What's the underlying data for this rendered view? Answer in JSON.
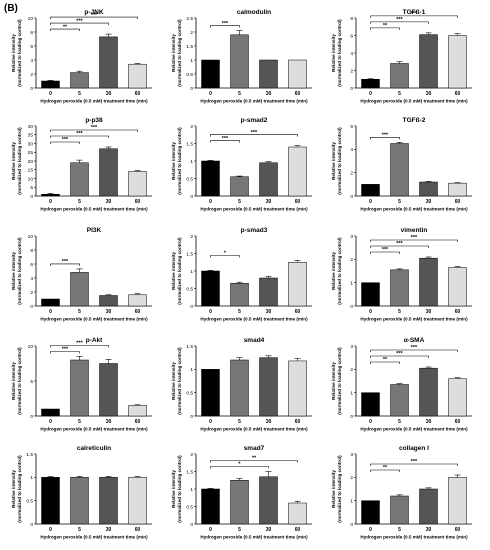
{
  "figure_label": "(B)",
  "shared": {
    "xlabel": "Hydrogen peroxide (0.5 mM) treatment time (min)",
    "ylabel_line1": "Relative intensity",
    "ylabel_line2": "(normalized to loading control)",
    "bar_colors": [
      "#000000",
      "#777777",
      "#555555",
      "#dddddd"
    ]
  },
  "chart_data": [
    {
      "type": "bar",
      "title": "p-JNK",
      "categories": [
        "0",
        "5",
        "30",
        "60"
      ],
      "values": [
        1.0,
        2.2,
        7.3,
        3.4
      ],
      "errors": [
        0.1,
        0.2,
        0.4,
        0.1
      ],
      "ylim": [
        0,
        10
      ],
      "yticks": [
        0,
        2,
        4,
        6,
        8,
        10
      ],
      "sig": [
        {
          "from": 0,
          "to": 1,
          "label": "**"
        },
        {
          "from": 0,
          "to": 2,
          "label": "***"
        },
        {
          "from": 0,
          "to": 3,
          "label": "***"
        }
      ]
    },
    {
      "type": "bar",
      "title": "calmodulin",
      "categories": [
        "0",
        "5",
        "30",
        "60"
      ],
      "values": [
        1.0,
        1.9,
        1.0,
        1.0
      ],
      "errors": [
        0.0,
        0.15,
        0.0,
        0.0
      ],
      "ylim": [
        0,
        2.5
      ],
      "yticks": [
        0,
        0.5,
        1.0,
        1.5,
        2.0,
        2.5
      ],
      "sig": [
        {
          "from": 0,
          "to": 1,
          "label": "***"
        }
      ]
    },
    {
      "type": "bar",
      "title": "TGFß-1",
      "categories": [
        "0",
        "5",
        "30",
        "60"
      ],
      "values": [
        1.0,
        2.8,
        6.1,
        6.0
      ],
      "errors": [
        0.05,
        0.2,
        0.2,
        0.2
      ],
      "ylim": [
        0,
        8
      ],
      "yticks": [
        0,
        2,
        4,
        6,
        8
      ],
      "sig": [
        {
          "from": 0,
          "to": 1,
          "label": "**"
        },
        {
          "from": 0,
          "to": 2,
          "label": "***"
        },
        {
          "from": 0,
          "to": 3,
          "label": "***"
        }
      ]
    },
    {
      "type": "bar",
      "title": "p-p38",
      "categories": [
        "0",
        "5",
        "30",
        "60"
      ],
      "values": [
        1.0,
        19,
        27,
        14
      ],
      "errors": [
        0.5,
        1.5,
        1.0,
        0.5
      ],
      "ylim": [
        0,
        40
      ],
      "yticks": [
        0,
        5,
        10,
        15,
        20,
        25,
        30,
        35,
        40
      ],
      "sig": [
        {
          "from": 0,
          "to": 1,
          "label": "***"
        },
        {
          "from": 0,
          "to": 2,
          "label": "***"
        },
        {
          "from": 0,
          "to": 3,
          "label": "***"
        }
      ]
    },
    {
      "type": "bar",
      "title": "p-smad2",
      "categories": [
        "0",
        "5",
        "30",
        "60"
      ],
      "values": [
        1.0,
        0.55,
        0.95,
        1.4
      ],
      "errors": [
        0.02,
        0.02,
        0.03,
        0.04
      ],
      "ylim": [
        0,
        2.0
      ],
      "yticks": [
        0,
        0.5,
        1.0,
        1.5,
        2.0
      ],
      "sig": [
        {
          "from": 0,
          "to": 1,
          "label": "***"
        },
        {
          "from": 0,
          "to": 3,
          "label": "***"
        }
      ]
    },
    {
      "type": "bar",
      "title": "TGFß-2",
      "categories": [
        "0",
        "5",
        "30",
        "60"
      ],
      "values": [
        1.0,
        4.5,
        1.2,
        1.1
      ],
      "errors": [
        0.0,
        0.1,
        0.05,
        0.05
      ],
      "ylim": [
        0,
        6
      ],
      "yticks": [
        0,
        2,
        4,
        6
      ],
      "sig": [
        {
          "from": 0,
          "to": 1,
          "label": "***"
        }
      ]
    },
    {
      "type": "bar",
      "title": "PI3K",
      "categories": [
        "0",
        "5",
        "30",
        "60"
      ],
      "values": [
        1.0,
        4.8,
        1.5,
        1.6
      ],
      "errors": [
        0.0,
        0.5,
        0.1,
        0.15
      ],
      "ylim": [
        0,
        10
      ],
      "yticks": [
        0,
        2,
        4,
        6,
        8,
        10
      ],
      "sig": [
        {
          "from": 0,
          "to": 1,
          "label": "***"
        }
      ]
    },
    {
      "type": "bar",
      "title": "p-smad3",
      "categories": [
        "0",
        "5",
        "30",
        "60"
      ],
      "values": [
        1.0,
        0.65,
        0.8,
        1.25
      ],
      "errors": [
        0.02,
        0.03,
        0.05,
        0.05
      ],
      "ylim": [
        0,
        2.0
      ],
      "yticks": [
        0,
        0.5,
        1.0,
        1.5,
        2.0
      ],
      "sig": [
        {
          "from": 0,
          "to": 1,
          "label": "*"
        }
      ]
    },
    {
      "type": "bar",
      "title": "vimentin",
      "categories": [
        "0",
        "5",
        "30",
        "60"
      ],
      "values": [
        1.0,
        1.55,
        2.05,
        1.65
      ],
      "errors": [
        0.0,
        0.04,
        0.05,
        0.04
      ],
      "ylim": [
        0,
        3
      ],
      "yticks": [
        0,
        1,
        2,
        3
      ],
      "sig": [
        {
          "from": 0,
          "to": 1,
          "label": "***"
        },
        {
          "from": 0,
          "to": 2,
          "label": "***"
        },
        {
          "from": 0,
          "to": 3,
          "label": "***"
        }
      ]
    },
    {
      "type": "bar",
      "title": "p-Akt",
      "categories": [
        "0",
        "5",
        "30",
        "60"
      ],
      "values": [
        1.0,
        8.0,
        7.5,
        1.5
      ],
      "errors": [
        0.0,
        0.5,
        0.6,
        0.1
      ],
      "ylim": [
        0,
        10
      ],
      "yticks": [
        0,
        5,
        10
      ],
      "sig": [
        {
          "from": 0,
          "to": 1,
          "label": "***"
        },
        {
          "from": 0,
          "to": 2,
          "label": "***"
        }
      ]
    },
    {
      "type": "bar",
      "title": "smad4",
      "categories": [
        "0",
        "5",
        "30",
        "60"
      ],
      "values": [
        1.0,
        1.2,
        1.25,
        1.18
      ],
      "errors": [
        0.0,
        0.05,
        0.04,
        0.05
      ],
      "ylim": [
        0,
        1.5
      ],
      "yticks": [
        0,
        0.5,
        1.0,
        1.5
      ],
      "sig": []
    },
    {
      "type": "bar",
      "title": "α-SMA",
      "categories": [
        "0",
        "5",
        "30",
        "60"
      ],
      "values": [
        1.0,
        1.35,
        2.05,
        1.6
      ],
      "errors": [
        0.0,
        0.04,
        0.05,
        0.04
      ],
      "ylim": [
        0,
        3
      ],
      "yticks": [
        0,
        1,
        2,
        3
      ],
      "sig": [
        {
          "from": 0,
          "to": 1,
          "label": "**"
        },
        {
          "from": 0,
          "to": 2,
          "label": "***"
        },
        {
          "from": 0,
          "to": 3,
          "label": "***"
        }
      ]
    },
    {
      "type": "bar",
      "title": "calreticulin",
      "categories": [
        "0",
        "5",
        "30",
        "60"
      ],
      "values": [
        1.0,
        1.0,
        1.0,
        1.0
      ],
      "errors": [
        0.02,
        0.02,
        0.02,
        0.02
      ],
      "ylim": [
        0,
        1.5
      ],
      "yticks": [
        0,
        0.5,
        1.0,
        1.5
      ],
      "sig": []
    },
    {
      "type": "bar",
      "title": "smad7",
      "categories": [
        "0",
        "5",
        "30",
        "60"
      ],
      "values": [
        1.0,
        1.25,
        1.35,
        0.6
      ],
      "errors": [
        0.02,
        0.05,
        0.15,
        0.05
      ],
      "ylim": [
        0,
        2.0
      ],
      "yticks": [
        0,
        0.5,
        1.0,
        1.5,
        2.0
      ],
      "sig": [
        {
          "from": 0,
          "to": 2,
          "label": "*"
        },
        {
          "from": 0,
          "to": 3,
          "label": "**"
        }
      ]
    },
    {
      "type": "bar",
      "title": "collagen I",
      "categories": [
        "0",
        "5",
        "30",
        "60"
      ],
      "values": [
        1.0,
        1.2,
        1.5,
        2.0
      ],
      "errors": [
        0.0,
        0.05,
        0.05,
        0.1
      ],
      "ylim": [
        0,
        3
      ],
      "yticks": [
        0,
        1,
        2,
        3
      ],
      "sig": [
        {
          "from": 0,
          "to": 1,
          "label": "**"
        },
        {
          "from": 0,
          "to": 3,
          "label": "***"
        }
      ]
    }
  ]
}
